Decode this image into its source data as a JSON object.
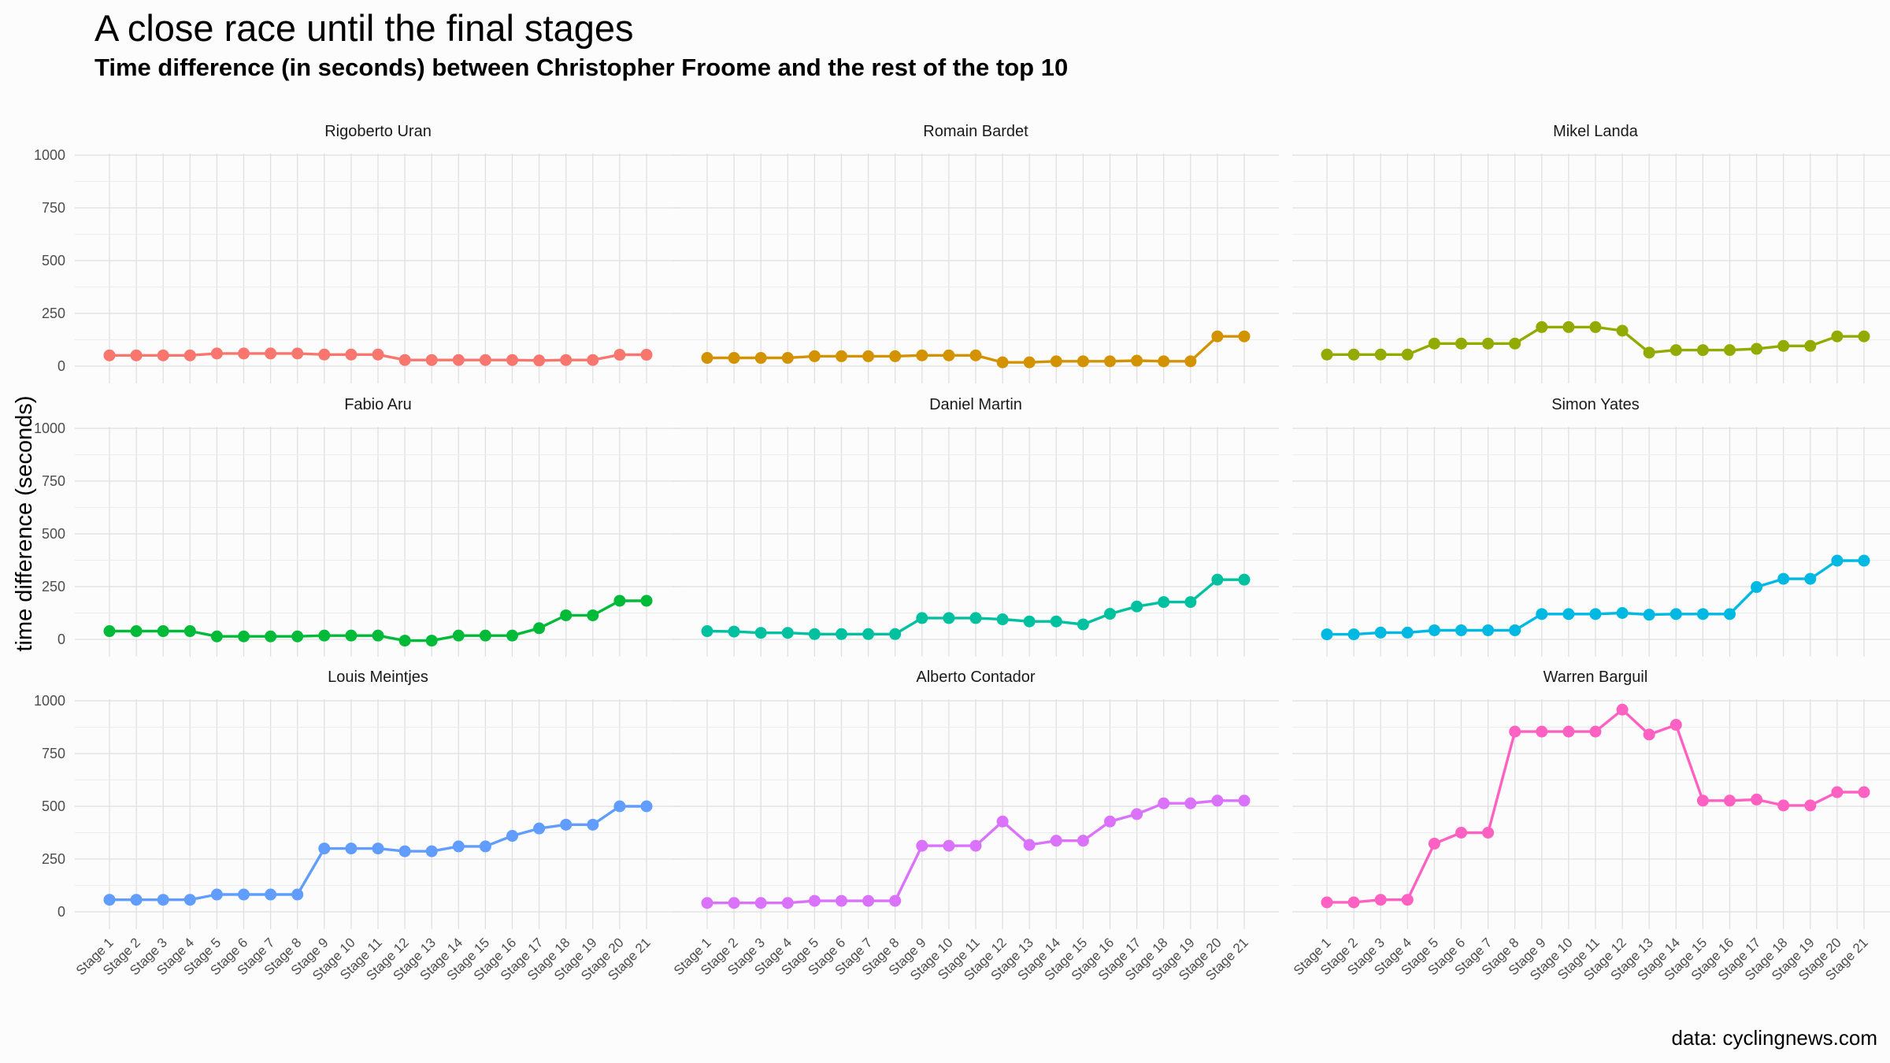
{
  "title": "A close race until the final stages",
  "subtitle": "Time difference (in seconds) between Christopher Froome and the rest of the top 10",
  "caption": "data: cyclingnews.com",
  "chart_data": {
    "type": "line",
    "layout": "facet-grid-3x3",
    "ylabel": "time difference (seconds)",
    "xlabel": "",
    "ylim": [
      0,
      1000
    ],
    "yticks": [
      0,
      250,
      500,
      750,
      1000
    ],
    "grid": true,
    "legend": "none",
    "categories": [
      "Stage 1",
      "Stage 2",
      "Stage 3",
      "Stage 4",
      "Stage 5",
      "Stage 6",
      "Stage 7",
      "Stage 8",
      "Stage 9",
      "Stage 10",
      "Stage 11",
      "Stage 12",
      "Stage 13",
      "Stage 14",
      "Stage 15",
      "Stage 16",
      "Stage 17",
      "Stage 18",
      "Stage 19",
      "Stage 20",
      "Stage 21"
    ],
    "series": [
      {
        "name": "Rigoberto Uran",
        "color": "#F8766D",
        "values": [
          51,
          51,
          51,
          51,
          60,
          60,
          60,
          60,
          55,
          55,
          55,
          29,
          29,
          29,
          29,
          29,
          27,
          29,
          29,
          54,
          54
        ]
      },
      {
        "name": "Romain Bardet",
        "color": "#D39200",
        "values": [
          39,
          39,
          39,
          39,
          47,
          47,
          47,
          47,
          51,
          51,
          51,
          18,
          18,
          23,
          23,
          23,
          26,
          23,
          23,
          141,
          141
        ]
      },
      {
        "name": "Mikel Landa",
        "color": "#93AA00",
        "values": [
          55,
          55,
          55,
          55,
          107,
          107,
          107,
          107,
          185,
          185,
          185,
          168,
          64,
          76,
          76,
          76,
          82,
          96,
          96,
          141,
          141
        ]
      },
      {
        "name": "Fabio Aru",
        "color": "#00BA38",
        "values": [
          39,
          39,
          39,
          39,
          14,
          14,
          14,
          14,
          18,
          18,
          18,
          -6,
          -6,
          18,
          18,
          18,
          53,
          114,
          114,
          183,
          183
        ]
      },
      {
        "name": "Daniel Martin",
        "color": "#00C19F",
        "values": [
          39,
          37,
          31,
          31,
          25,
          25,
          25,
          25,
          101,
          101,
          101,
          95,
          85,
          85,
          71,
          121,
          156,
          177,
          177,
          283,
          283
        ]
      },
      {
        "name": "Simon Yates",
        "color": "#00B9E3",
        "values": [
          24,
          24,
          32,
          32,
          43,
          43,
          43,
          43,
          120,
          120,
          120,
          125,
          117,
          120,
          120,
          120,
          248,
          287,
          287,
          373,
          373
        ]
      },
      {
        "name": "Louis Meintjes",
        "color": "#619CFF",
        "values": [
          57,
          57,
          57,
          57,
          82,
          82,
          82,
          82,
          300,
          300,
          300,
          287,
          287,
          310,
          310,
          360,
          395,
          413,
          413,
          500,
          500
        ]
      },
      {
        "name": "Alberto Contador",
        "color": "#DB72FB",
        "values": [
          42,
          42,
          42,
          42,
          52,
          52,
          52,
          52,
          313,
          313,
          313,
          428,
          317,
          337,
          337,
          428,
          463,
          514,
          514,
          527,
          527
        ]
      },
      {
        "name": "Warren Barguil",
        "color": "#FF61C3",
        "values": [
          45,
          45,
          57,
          57,
          323,
          375,
          375,
          854,
          854,
          854,
          854,
          958,
          840,
          886,
          527,
          527,
          532,
          504,
          504,
          567,
          567
        ]
      }
    ]
  }
}
